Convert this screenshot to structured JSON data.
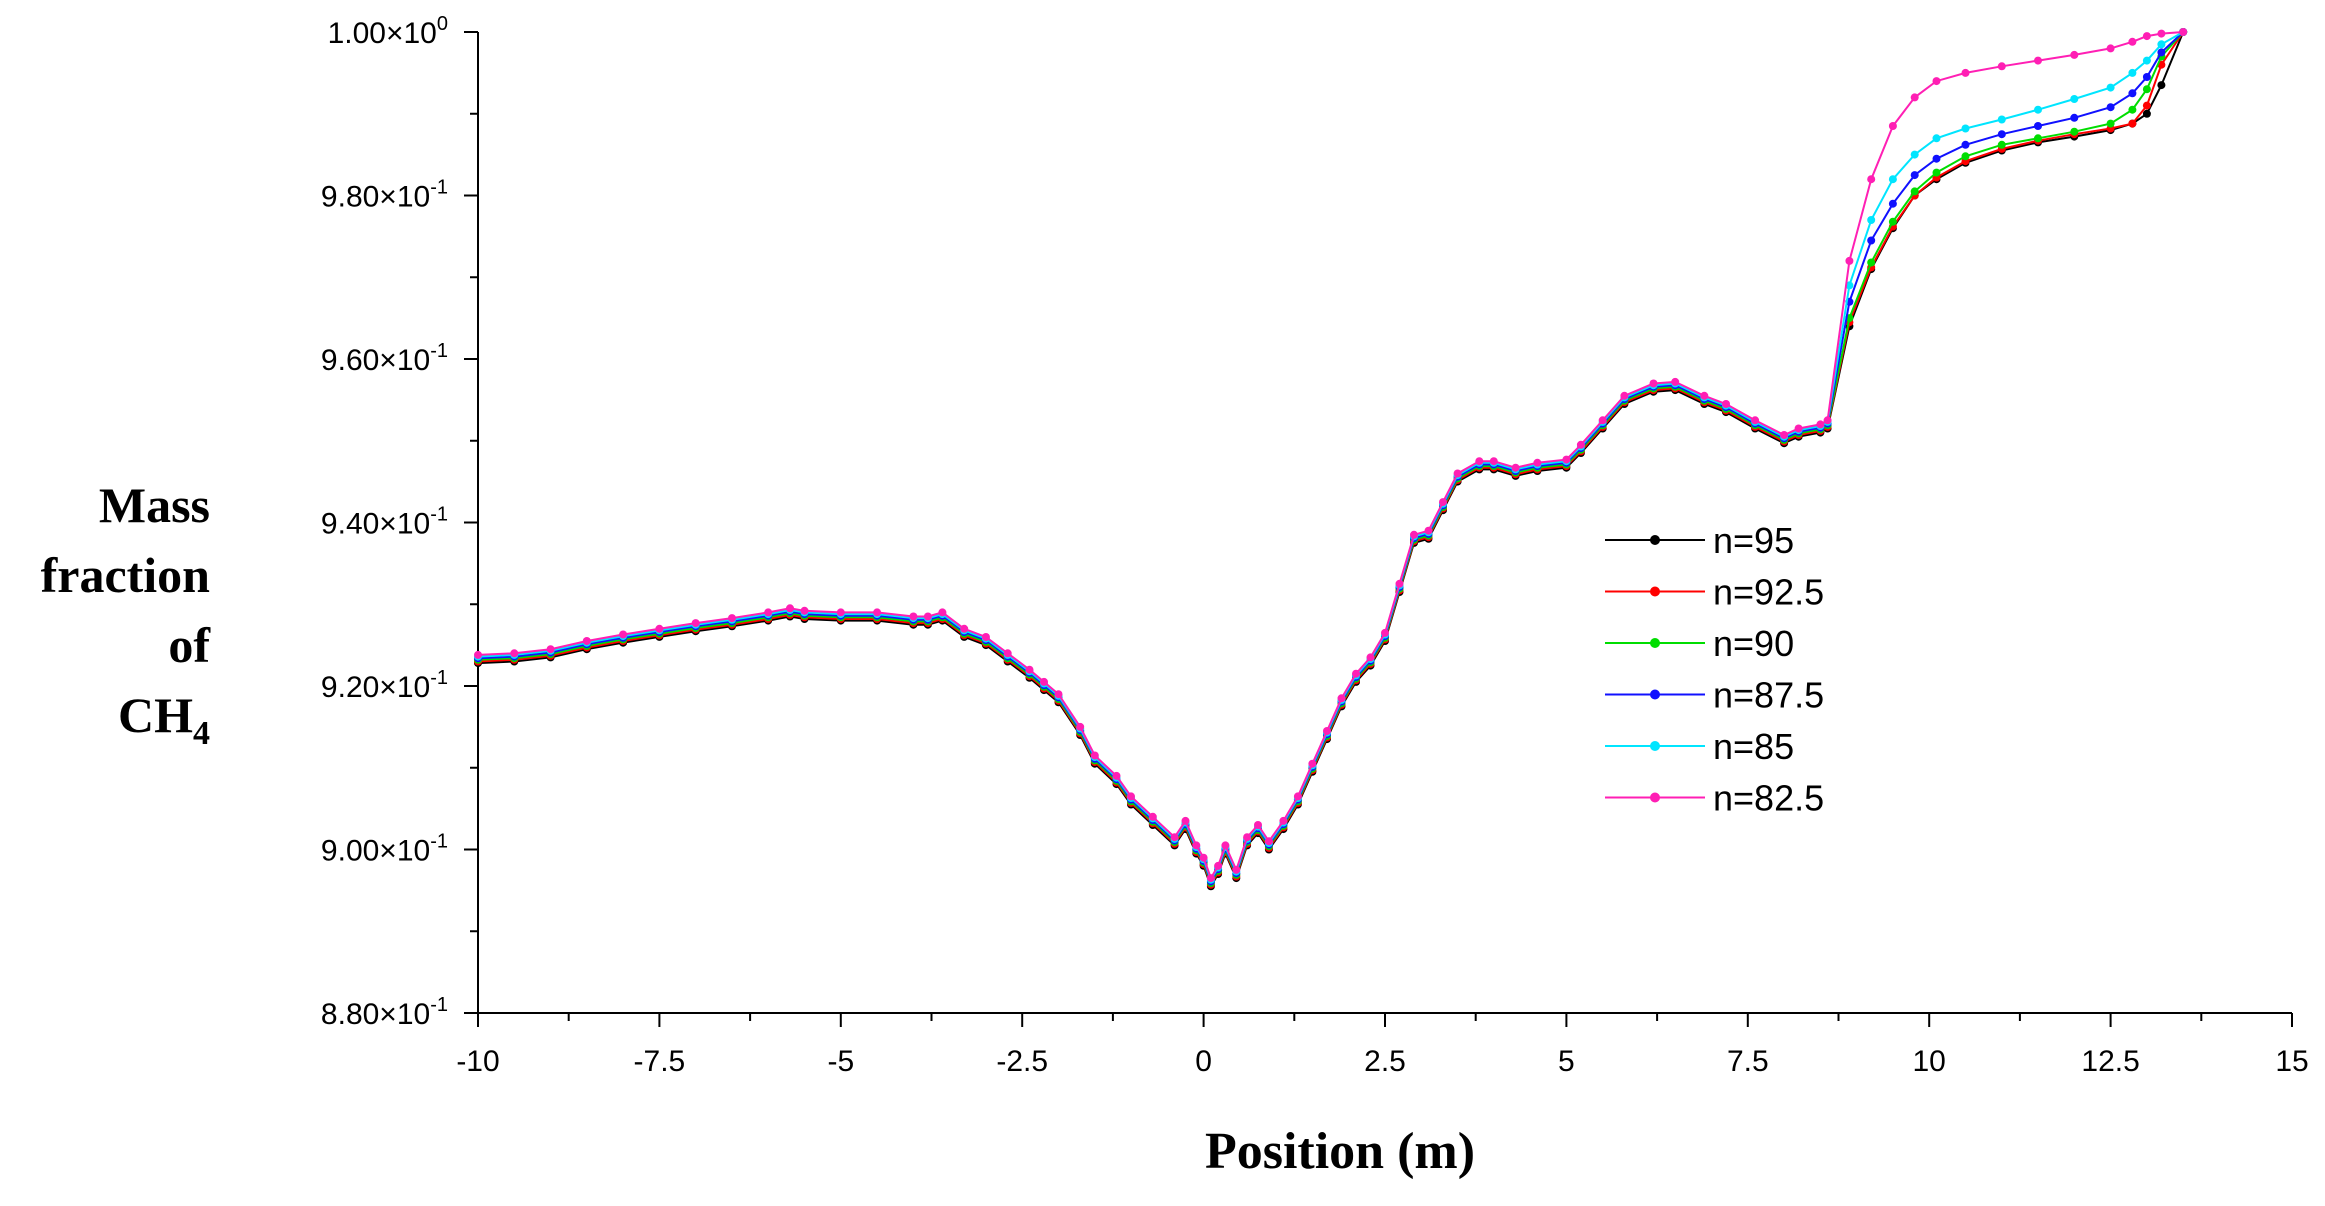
{
  "chart_data": {
    "type": "line",
    "title": "",
    "xlabel": "Position (m)",
    "ylabel_lines": [
      "Mass",
      "fraction",
      "of"
    ],
    "ylabel_species": {
      "base": "CH",
      "sub": "4"
    },
    "xlim": [
      -10,
      15
    ],
    "ylim": [
      0.88,
      1.0
    ],
    "xticks": [
      -10,
      -7.5,
      -5,
      -2.5,
      0,
      2.5,
      5,
      7.5,
      10,
      12.5,
      15
    ],
    "xtick_labels": [
      "-10",
      "-7.5",
      "-5",
      "-2.5",
      "0",
      "2.5",
      "5",
      "7.5",
      "10",
      "12.5",
      "15"
    ],
    "yticks": [
      {
        "value": 0.88,
        "mant": "8.80",
        "exp": "-1"
      },
      {
        "value": 0.9,
        "mant": "9.00",
        "exp": "-1"
      },
      {
        "value": 0.92,
        "mant": "9.20",
        "exp": "-1"
      },
      {
        "value": 0.94,
        "mant": "9.40",
        "exp": "-1"
      },
      {
        "value": 0.96,
        "mant": "9.60",
        "exp": "-1"
      },
      {
        "value": 0.98,
        "mant": "9.80",
        "exp": "-1"
      },
      {
        "value": 1.0,
        "mant": "1.00",
        "exp": "0"
      }
    ],
    "legend_position": "right-center",
    "base_curve": {
      "x": [
        -10,
        -9.5,
        -9,
        -8.5,
        -8,
        -7.5,
        -7,
        -6.5,
        -6,
        -5.7,
        -5.5,
        -5,
        -4.5,
        -4,
        -3.8,
        -3.6,
        -3.3,
        -3,
        -2.7,
        -2.4,
        -2.2,
        -2,
        -1.7,
        -1.5,
        -1.2,
        -1,
        -0.7,
        -0.4,
        -0.25,
        -0.1,
        0,
        0.1,
        0.2,
        0.3,
        0.45,
        0.6,
        0.75,
        0.9,
        1.1,
        1.3,
        1.5,
        1.7,
        1.9,
        2.1,
        2.3,
        2.5,
        2.7,
        2.9,
        3.1,
        3.3,
        3.5,
        3.8,
        4,
        4.3,
        4.6,
        5,
        5.2,
        5.5,
        5.8,
        6.2,
        6.5,
        6.9,
        7.2,
        7.6,
        8,
        8.2,
        8.5,
        8.6
      ],
      "y": [
        0.9233,
        0.9235,
        0.924,
        0.925,
        0.9258,
        0.9265,
        0.9272,
        0.9278,
        0.9285,
        0.929,
        0.9287,
        0.9285,
        0.9285,
        0.928,
        0.928,
        0.9285,
        0.9265,
        0.9255,
        0.9235,
        0.9215,
        0.92,
        0.9185,
        0.9145,
        0.911,
        0.9085,
        0.906,
        0.9035,
        0.901,
        0.903,
        0.9,
        0.8985,
        0.896,
        0.8975,
        0.9,
        0.897,
        0.901,
        0.9025,
        0.9005,
        0.903,
        0.906,
        0.91,
        0.914,
        0.918,
        0.921,
        0.923,
        0.926,
        0.932,
        0.938,
        0.9385,
        0.942,
        0.9455,
        0.947,
        0.947,
        0.9462,
        0.9468,
        0.9472,
        0.949,
        0.952,
        0.955,
        0.9565,
        0.9567,
        0.955,
        0.954,
        0.952,
        0.9502,
        0.951,
        0.9515,
        0.952
      ]
    },
    "series": [
      {
        "name": "n=95",
        "color": "#000000",
        "offset": -0.0005,
        "x": [
          8.6,
          8.9,
          9.2,
          9.5,
          9.8,
          10.1,
          10.5,
          11,
          11.5,
          12,
          12.5,
          12.8,
          13,
          13.2,
          13.5
        ],
        "y": [
          0.952,
          0.964,
          0.971,
          0.976,
          0.98,
          0.982,
          0.984,
          0.9855,
          0.9865,
          0.9872,
          0.988,
          0.9888,
          0.99,
          0.9935,
          1.0
        ]
      },
      {
        "name": "n=92.5",
        "color": "#ff0000",
        "offset": -0.0003,
        "x": [
          8.6,
          8.9,
          9.2,
          9.5,
          9.8,
          10.1,
          10.5,
          11,
          11.5,
          12,
          12.5,
          12.8,
          13,
          13.2,
          13.5
        ],
        "y": [
          0.9522,
          0.9645,
          0.9712,
          0.9762,
          0.98,
          0.9822,
          0.9842,
          0.9857,
          0.9867,
          0.9875,
          0.9882,
          0.9888,
          0.991,
          0.996,
          1.0
        ]
      },
      {
        "name": "n=90",
        "color": "#00dd00",
        "offset": -0.0001,
        "x": [
          8.6,
          8.9,
          9.2,
          9.5,
          9.8,
          10.1,
          10.5,
          11,
          11.5,
          12,
          12.5,
          12.8,
          13,
          13.2,
          13.5
        ],
        "y": [
          0.9525,
          0.965,
          0.9718,
          0.9768,
          0.9805,
          0.9828,
          0.9848,
          0.9862,
          0.987,
          0.9878,
          0.9888,
          0.9905,
          0.993,
          0.997,
          1.0
        ]
      },
      {
        "name": "n=87.5",
        "color": "#1010ff",
        "offset": 0.0001,
        "x": [
          8.6,
          8.9,
          9.2,
          9.5,
          9.8,
          10.1,
          10.5,
          11,
          11.5,
          12,
          12.5,
          12.8,
          13,
          13.2,
          13.5
        ],
        "y": [
          0.9528,
          0.967,
          0.9745,
          0.979,
          0.9825,
          0.9845,
          0.9862,
          0.9875,
          0.9885,
          0.9895,
          0.9908,
          0.9925,
          0.9945,
          0.9975,
          1.0
        ]
      },
      {
        "name": "n=85",
        "color": "#00e5ff",
        "offset": 0.0003,
        "x": [
          8.6,
          8.9,
          9.2,
          9.5,
          9.8,
          10.1,
          10.5,
          11,
          11.5,
          12,
          12.5,
          12.8,
          13,
          13.2,
          13.5
        ],
        "y": [
          0.953,
          0.969,
          0.977,
          0.982,
          0.985,
          0.987,
          0.9882,
          0.9893,
          0.9905,
          0.9918,
          0.9932,
          0.995,
          0.9965,
          0.9985,
          1.0
        ]
      },
      {
        "name": "n=82.5",
        "color": "#ff1fb4",
        "offset": 0.0005,
        "x": [
          8.6,
          8.9,
          9.2,
          9.5,
          9.8,
          10.1,
          10.5,
          11,
          11.5,
          12,
          12.5,
          12.8,
          13,
          13.2,
          13.5
        ],
        "y": [
          0.9533,
          0.972,
          0.982,
          0.9885,
          0.992,
          0.994,
          0.995,
          0.9958,
          0.9965,
          0.9972,
          0.998,
          0.9988,
          0.9995,
          0.9998,
          1.0
        ]
      }
    ]
  }
}
